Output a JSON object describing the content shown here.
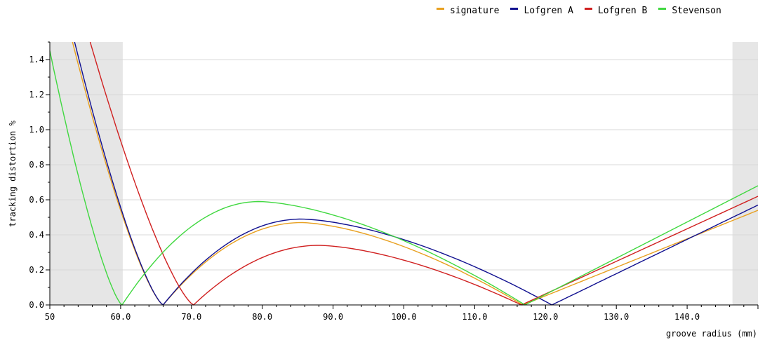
{
  "chart_data": {
    "type": "line",
    "xlabel": "groove radius (mm)",
    "ylabel": "tracking distortion %",
    "xlim": [
      50,
      150
    ],
    "ylim": [
      0,
      1.5
    ],
    "x_ticks": [
      {
        "value": 50,
        "label": "50"
      },
      {
        "value": 60,
        "label": "60.0"
      },
      {
        "value": 70,
        "label": "70.0"
      },
      {
        "value": 80,
        "label": "80.0"
      },
      {
        "value": 90,
        "label": "90.0"
      },
      {
        "value": 100,
        "label": "100.0"
      },
      {
        "value": 110,
        "label": "110.0"
      },
      {
        "value": 120,
        "label": "120.0"
      },
      {
        "value": 130,
        "label": "130.0"
      },
      {
        "value": 140,
        "label": "140.0"
      }
    ],
    "y_ticks": [
      {
        "value": 0,
        "label": "0.0"
      },
      {
        "value": 0.2,
        "label": "0.2"
      },
      {
        "value": 0.4,
        "label": "0.4"
      },
      {
        "value": 0.6,
        "label": "0.6"
      },
      {
        "value": 0.8,
        "label": "0.8"
      },
      {
        "value": 1.0,
        "label": "1.0"
      },
      {
        "value": 1.2,
        "label": "1.2"
      },
      {
        "value": 1.4,
        "label": "1.4"
      }
    ],
    "grid": "horizontal",
    "shaded_regions": [
      [
        50,
        60.3
      ],
      [
        146.4,
        150
      ]
    ],
    "legend_position": "top-right",
    "series": [
      {
        "name": "signature",
        "color": "#e8a020",
        "null_points": [
          66.0,
          116.8
        ],
        "peak": [
          85.5,
          0.47
        ],
        "end_value": 0.54,
        "left_value": 1.5,
        "left_x": 53.2
      },
      {
        "name": "Lofgren A",
        "color": "#101090",
        "null_points": [
          66.0,
          120.9
        ],
        "peak": [
          85.5,
          0.49
        ],
        "end_value": 0.57,
        "left_value": 1.5,
        "left_x": 53.5
      },
      {
        "name": "Lofgren B",
        "color": "#d02020",
        "null_points": [
          70.3,
          116.6
        ],
        "peak": [
          88.0,
          0.34
        ],
        "end_value": 0.62,
        "left_value": 1.5,
        "left_x": 55.7
      },
      {
        "name": "Stevenson",
        "color": "#40d840",
        "null_points": [
          60.2,
          117.1
        ],
        "peak": [
          79.5,
          0.59
        ],
        "end_value": 0.68,
        "left_value": 1.45,
        "left_x": 50.0
      }
    ]
  }
}
